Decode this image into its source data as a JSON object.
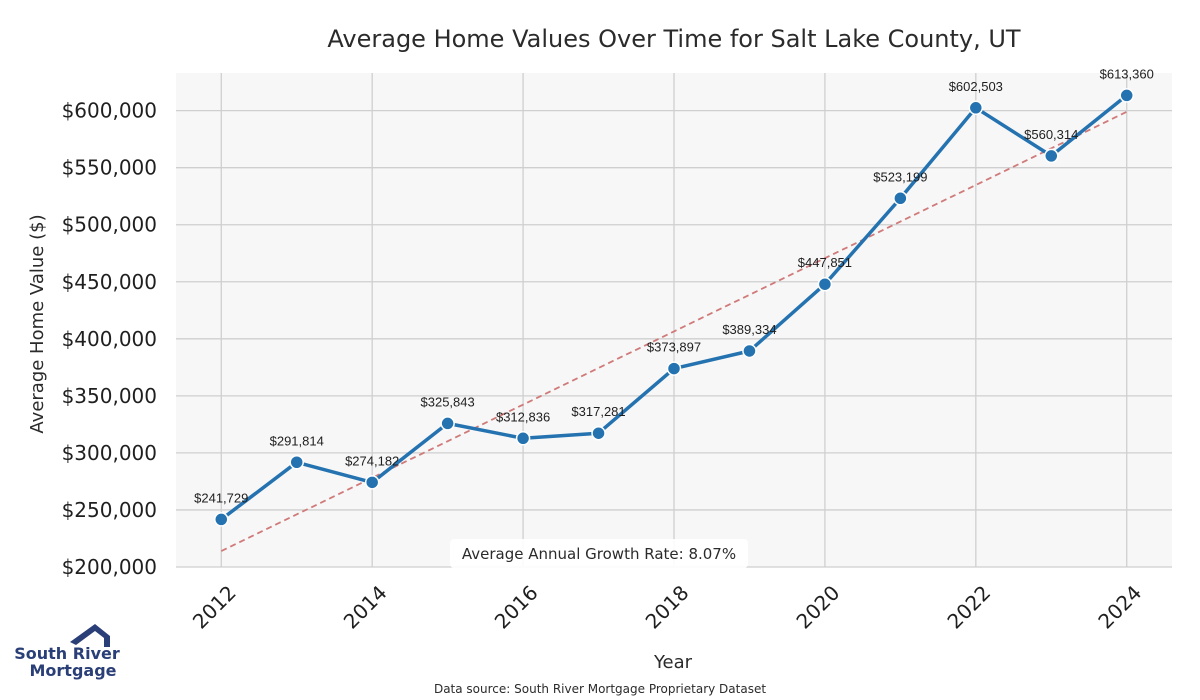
{
  "chart_data": {
    "type": "line",
    "title": "Average Home Values Over Time for Salt Lake County, UT",
    "xlabel": "Year",
    "ylabel": "Average Home Value ($)",
    "x": [
      2012,
      2013,
      2014,
      2015,
      2016,
      2017,
      2018,
      2019,
      2020,
      2021,
      2022,
      2023,
      2024
    ],
    "series": [
      {
        "values": [
          241729,
          291814,
          274182,
          325843,
          312836,
          317281,
          373897,
          389334,
          447851,
          523199,
          602503,
          560314,
          613360
        ],
        "color": "#2473b0"
      }
    ],
    "data_labels": [
      "$241,729",
      "$291,814",
      "$274,182",
      "$325,843",
      "$312,836",
      "$317,281",
      "$373,897",
      "$389,334",
      "$447,851",
      "$523,199",
      "$602,503",
      "$560,314",
      "$613,360"
    ],
    "trendline": {
      "style": "dashed",
      "color": "#d07a7a",
      "start": [
        2012,
        214000
      ],
      "end": [
        2024,
        599000
      ]
    },
    "xticks": [
      "2012",
      "2014",
      "2016",
      "2018",
      "2020",
      "2022",
      "2024"
    ],
    "yticks": [
      "$200,000",
      "$250,000",
      "$300,000",
      "$350,000",
      "$400,000",
      "$450,000",
      "$500,000",
      "$550,000",
      "$600,000"
    ],
    "yticks_values": [
      200000,
      250000,
      300000,
      350000,
      400000,
      450000,
      500000,
      550000,
      600000
    ],
    "xlim": [
      2011.4,
      2024.6
    ],
    "ylim": [
      200000,
      633000
    ],
    "grid": true,
    "annotation": "Average Annual Growth Rate: 8.07%",
    "source": "Data source: South River Mortgage Proprietary Dataset"
  },
  "logo": {
    "line1": "South River",
    "line2": "Mortgage",
    "color": "#2a3f77",
    "icon": "house-roof-icon"
  },
  "colors": {
    "plot_bg": "#f7f7f7",
    "grid": "#cfcfcf",
    "line": "#2473b0",
    "trend": "#d07a7a"
  }
}
